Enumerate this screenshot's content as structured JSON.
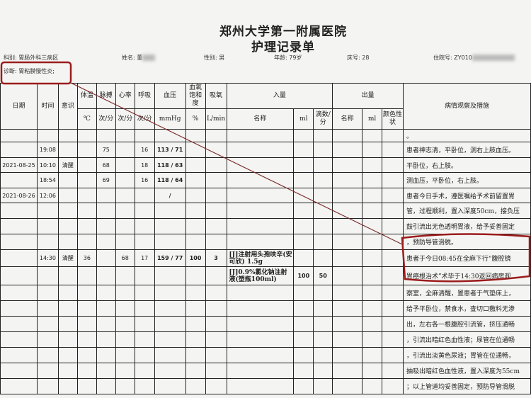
{
  "header": {
    "hospital": "郑州大学第一附属医院",
    "form_title": "护理记录单"
  },
  "patient": {
    "dept_label": "科别:",
    "dept": "胃肠外科三病区",
    "name_label": "姓名:",
    "name": "董",
    "sex_label": "性别:",
    "sex": "男",
    "age_label": "年龄:",
    "age": "79岁",
    "bed_label": "床号:",
    "bed": "28",
    "admission_label": "住院号:",
    "admission": "ZY010",
    "diagnosis_label": "诊断:",
    "diagnosis": "胃粘膜慢性炎;"
  },
  "columns": {
    "date": "日期",
    "time": "时间",
    "consciousness": "意识",
    "temp": "体温",
    "pulse": "脉搏",
    "heart_rate": "心率",
    "resp": "呼吸",
    "bp": "血压",
    "spo2": "血氧饱和度",
    "oxygen": "吸氧",
    "intake": "入量",
    "output": "出量",
    "observation": "病情观察及措施",
    "temp_unit": "℃",
    "pulse_unit": "次/分",
    "hr_unit": "次/分",
    "resp_unit": "次/分",
    "bp_unit": "mmHg",
    "spo2_unit": "%",
    "oxygen_unit": "L/min",
    "intake_name": "名称",
    "intake_ml": "ml",
    "intake_drops": "滴数/分",
    "output_name": "名称",
    "output_ml": "ml",
    "output_color": "颜色性状"
  },
  "rows": [
    {
      "date": "",
      "time": "",
      "cons": "",
      "temp": "",
      "pulse": "",
      "hr": "",
      "resp": "",
      "bp": "",
      "spo2": "",
      "o2": "",
      "drug": "",
      "ml": "",
      "drops": ""
    },
    {
      "date": "",
      "time": "19:08",
      "cons": "",
      "temp": "",
      "pulse": "75",
      "hr": "",
      "resp": "16",
      "bp": "113 / 71",
      "spo2": "",
      "o2": "",
      "drug": "",
      "ml": "",
      "drops": ""
    },
    {
      "date": "2021-08-25",
      "time": "10:10",
      "cons": "清醒",
      "temp": "",
      "pulse": "68",
      "hr": "",
      "resp": "18",
      "bp": "118 / 63",
      "spo2": "",
      "o2": "",
      "drug": "",
      "ml": "",
      "drops": ""
    },
    {
      "date": "",
      "time": "18:54",
      "cons": "",
      "temp": "",
      "pulse": "69",
      "hr": "",
      "resp": "16",
      "bp": "118 / 64",
      "spo2": "",
      "o2": "",
      "drug": "",
      "ml": "",
      "drops": ""
    },
    {
      "date": "2021-08-26",
      "time": "12:06",
      "cons": "",
      "temp": "",
      "pulse": "",
      "hr": "",
      "resp": "",
      "bp": "/",
      "spo2": "",
      "o2": "",
      "drug": "",
      "ml": "",
      "drops": ""
    },
    {
      "date": "",
      "time": "",
      "cons": "",
      "temp": "",
      "pulse": "",
      "hr": "",
      "resp": "",
      "bp": "",
      "spo2": "",
      "o2": "",
      "drug": "",
      "ml": "",
      "drops": ""
    },
    {
      "date": "",
      "time": "",
      "cons": "",
      "temp": "",
      "pulse": "",
      "hr": "",
      "resp": "",
      "bp": "",
      "spo2": "",
      "o2": "",
      "drug": "",
      "ml": "",
      "drops": ""
    },
    {
      "date": "",
      "time": "",
      "cons": "",
      "temp": "",
      "pulse": "",
      "hr": "",
      "resp": "",
      "bp": "",
      "spo2": "",
      "o2": "",
      "drug": "",
      "ml": "",
      "drops": ""
    },
    {
      "date": "",
      "time": "14:30",
      "cons": "清醒",
      "temp": "36",
      "pulse": "",
      "hr": "68",
      "resp": "17",
      "bp": "159 / 77",
      "spo2": "100",
      "o2": "3",
      "drug": "[J]注射用头孢呋辛(安可欣) 1.5g",
      "ml": "",
      "drops": ""
    },
    {
      "date": "",
      "time": "",
      "cons": "",
      "temp": "",
      "pulse": "",
      "hr": "",
      "resp": "",
      "bp": "",
      "spo2": "",
      "o2": "",
      "drug": "[J]0.9%氯化钠注射液(塑瓶100ml)",
      "ml": "100",
      "drops": "50"
    },
    {
      "date": "",
      "time": "",
      "cons": "",
      "temp": "",
      "pulse": "",
      "hr": "",
      "resp": "",
      "bp": "",
      "spo2": "",
      "o2": "",
      "drug": "",
      "ml": "",
      "drops": ""
    },
    {
      "date": "",
      "time": "",
      "cons": "",
      "temp": "",
      "pulse": "",
      "hr": "",
      "resp": "",
      "bp": "",
      "spo2": "",
      "o2": "",
      "drug": "",
      "ml": "",
      "drops": ""
    },
    {
      "date": "",
      "time": "",
      "cons": "",
      "temp": "",
      "pulse": "",
      "hr": "",
      "resp": "",
      "bp": "",
      "spo2": "",
      "o2": "",
      "drug": "",
      "ml": "",
      "drops": ""
    },
    {
      "date": "",
      "time": "",
      "cons": "",
      "temp": "",
      "pulse": "",
      "hr": "",
      "resp": "",
      "bp": "",
      "spo2": "",
      "o2": "",
      "drug": "",
      "ml": "",
      "drops": ""
    },
    {
      "date": "",
      "time": "",
      "cons": "",
      "temp": "",
      "pulse": "",
      "hr": "",
      "resp": "",
      "bp": "",
      "spo2": "",
      "o2": "",
      "drug": "",
      "ml": "",
      "drops": ""
    },
    {
      "date": "",
      "time": "",
      "cons": "",
      "temp": "",
      "pulse": "",
      "hr": "",
      "resp": "",
      "bp": "",
      "spo2": "",
      "o2": "",
      "drug": "",
      "ml": "",
      "drops": ""
    },
    {
      "date": "",
      "time": "",
      "cons": "",
      "temp": "",
      "pulse": "",
      "hr": "",
      "resp": "",
      "bp": "",
      "spo2": "",
      "o2": "",
      "drug": "",
      "ml": "",
      "drops": ""
    }
  ],
  "observations": [
    "。",
    "患者神志清，平卧位，测右上肢血压。",
    "平卧位，右上肢。",
    "测血压，平卧位，右上肢。",
    "患者今日手术，遵医嘱给予术前留置胃",
    "管，过程顺利，置入深度50cm，接负压",
    "鼓引流出无色透明胃液，给予妥善固定",
    "，预防导管滑脱。",
    "患者于今日08:45在全麻下行“腹腔镜",
    "胃癌根治术”术毕于14:30返回病房观",
    "察室，全麻清醒，置患者于气垫床上，",
    "给予平卧位，禁食水，查切口敷料无渗",
    "出，左右各一根腹腔引流管，挤压通畅",
    "，引流出暗红色血性液；尿管在位通畅",
    "，引流出淡黄色尿液；胃管在位通畅，",
    "抽吸出暗红色血性液，置入深度为55cm",
    "；以上管道均妥善固定，预防导管滑脱"
  ],
  "annotation_color": "#9b1c1c"
}
